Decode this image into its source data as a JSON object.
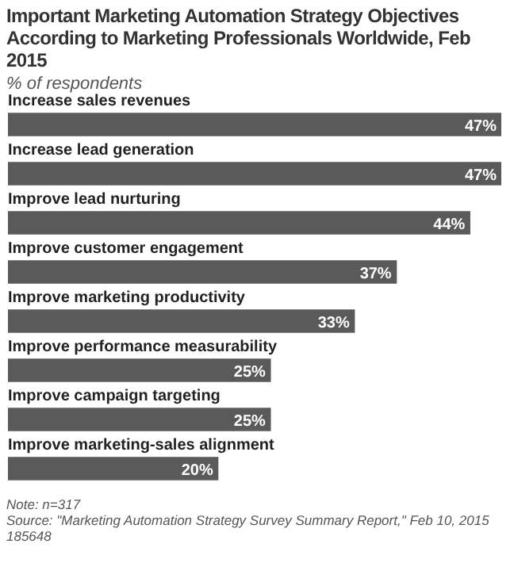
{
  "chart_data": {
    "type": "bar",
    "orientation": "horizontal",
    "title": "Important Marketing Automation Strategy Objectives According to Marketing Professionals Worldwide, Feb 2015",
    "subtitle": "% of respondents",
    "categories": [
      "Increase sales revenues",
      "Increase lead generation",
      "Improve lead nurturing",
      "Improve customer engagement",
      "Improve marketing productivity",
      "Improve performance measurability",
      "Improve campaign targeting",
      "Improve marketing-sales alignment"
    ],
    "values": [
      47,
      47,
      44,
      37,
      33,
      25,
      25,
      20
    ],
    "value_labels": [
      "47%",
      "47%",
      "44%",
      "37%",
      "33%",
      "25%",
      "25%",
      "20%"
    ],
    "color": "#5a5a5a",
    "annotations": [
      "Note: n=317",
      "Source: \"Marketing Automation Strategy Survey Summary Report,\" Feb 10, 2015",
      "185648"
    ]
  }
}
